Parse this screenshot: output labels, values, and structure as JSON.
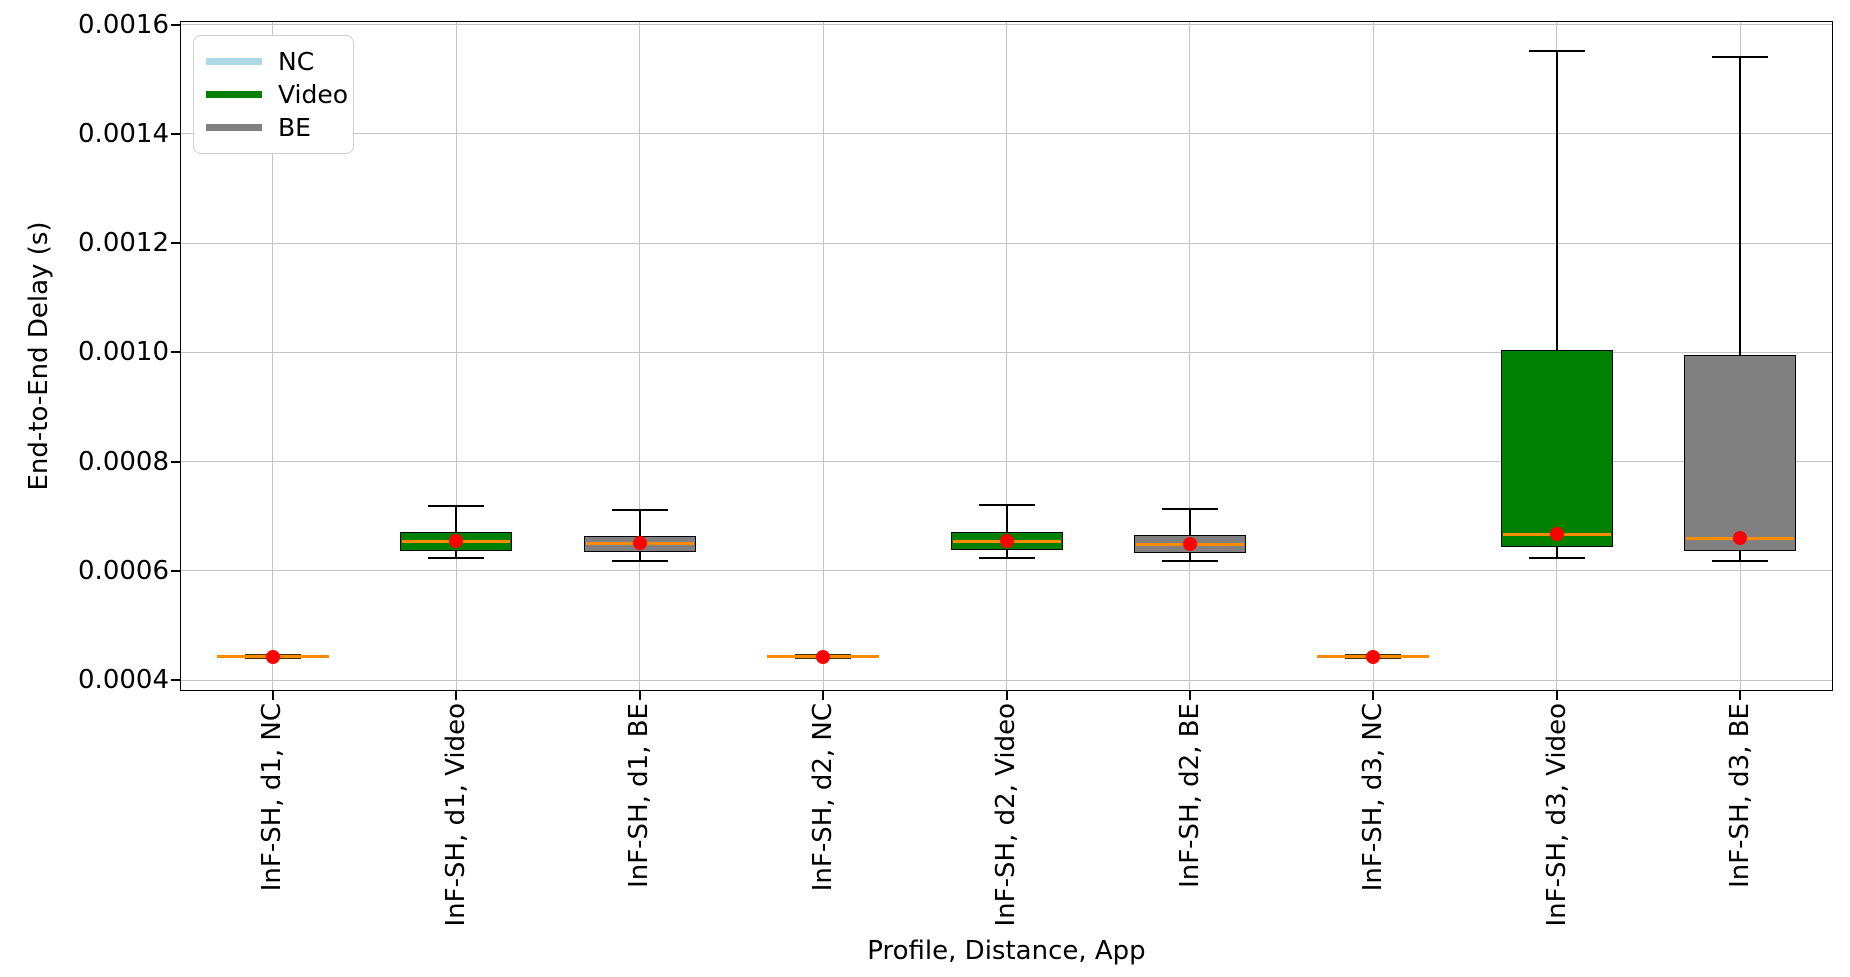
{
  "chart_data": {
    "type": "boxplot",
    "title": "",
    "xlabel": "Profile, Distance, App",
    "ylabel": "End-to-End Delay (s)",
    "ylim": [
      0.000382,
      0.001605
    ],
    "yticks": [
      0.0004,
      0.0006,
      0.0008,
      0.001,
      0.0012,
      0.0014,
      0.0016
    ],
    "ytick_labels": [
      "0.0004",
      "0.0006",
      "0.0008",
      "0.0010",
      "0.0012",
      "0.0014",
      "0.0016"
    ],
    "grid": true,
    "legend_position": "upper left",
    "legend": [
      {
        "label": "NC",
        "color": "#ADD8E6"
      },
      {
        "label": "Video",
        "color": "#008000"
      },
      {
        "label": "BE",
        "color": "#808080"
      }
    ],
    "categories": [
      "InF-SH, d1, NC",
      "InF-SH, d1, Video",
      "InF-SH, d1, BE",
      "InF-SH, d2, NC",
      "InF-SH, d2, Video",
      "InF-SH, d2, BE",
      "InF-SH, d3, NC",
      "InF-SH, d3, Video",
      "InF-SH, d3, BE"
    ],
    "boxes": [
      {
        "category": "InF-SH, d1, NC",
        "group": "NC",
        "whislo": 0.000441,
        "q1": 0.000442,
        "med": 0.000443,
        "q3": 0.000444,
        "whishi": 0.000445,
        "mean": 0.000443
      },
      {
        "category": "InF-SH, d1, Video",
        "group": "Video",
        "whislo": 0.000624,
        "q1": 0.000637,
        "med": 0.000654,
        "q3": 0.000672,
        "whishi": 0.000718,
        "mean": 0.000655
      },
      {
        "category": "InF-SH, d1, BE",
        "group": "BE",
        "whislo": 0.000619,
        "q1": 0.000634,
        "med": 0.000651,
        "q3": 0.000664,
        "whishi": 0.000712,
        "mean": 0.000651
      },
      {
        "category": "InF-SH, d2, NC",
        "group": "NC",
        "whislo": 0.000441,
        "q1": 0.000442,
        "med": 0.000443,
        "q3": 0.000444,
        "whishi": 0.000445,
        "mean": 0.000443
      },
      {
        "category": "InF-SH, d2, Video",
        "group": "Video",
        "whislo": 0.000623,
        "q1": 0.000639,
        "med": 0.000654,
        "q3": 0.000672,
        "whishi": 0.00072,
        "mean": 0.000654
      },
      {
        "category": "InF-SH, d2, BE",
        "group": "BE",
        "whislo": 0.000618,
        "q1": 0.000632,
        "med": 0.000649,
        "q3": 0.000666,
        "whishi": 0.000714,
        "mean": 0.00065
      },
      {
        "category": "InF-SH, d3, NC",
        "group": "NC",
        "whislo": 0.000441,
        "q1": 0.000442,
        "med": 0.000443,
        "q3": 0.000444,
        "whishi": 0.000445,
        "mean": 0.000443
      },
      {
        "category": "InF-SH, d3, Video",
        "group": "Video",
        "whislo": 0.000623,
        "q1": 0.000643,
        "med": 0.000667,
        "q3": 0.001005,
        "whishi": 0.001551,
        "mean": 0.000667
      },
      {
        "category": "InF-SH, d3, BE",
        "group": "BE",
        "whislo": 0.000618,
        "q1": 0.000637,
        "med": 0.00066,
        "q3": 0.000996,
        "whishi": 0.001541,
        "mean": 0.000661
      }
    ],
    "box_colors": {
      "NC": "#ADD8E6",
      "Video": "#008000",
      "BE": "#808080"
    },
    "median_color": "#ff8c00",
    "mean_marker_color": "#ff0000",
    "grid_color": "#c4c4c4"
  }
}
